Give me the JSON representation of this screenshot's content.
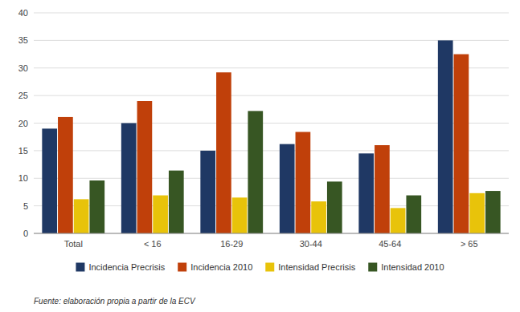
{
  "chart_data": {
    "type": "bar",
    "categories": [
      "Total",
      "< 16",
      "16-29",
      "30-44",
      "45-64",
      "> 65"
    ],
    "series": [
      {
        "name": "Incidencia Precrisis",
        "color": "#1f3864",
        "values": [
          19.0,
          20.0,
          15.0,
          16.2,
          14.5,
          35.0
        ]
      },
      {
        "name": "Incidencia 2010",
        "color": "#c0400a",
        "values": [
          21.1,
          24.0,
          29.2,
          18.4,
          16.0,
          32.5
        ]
      },
      {
        "name": "Intensidad Precrisis",
        "color": "#e8c30a",
        "values": [
          6.2,
          6.9,
          6.5,
          5.8,
          4.6,
          7.3
        ]
      },
      {
        "name": "Intensidad 2010",
        "color": "#375623",
        "values": [
          9.6,
          11.4,
          22.2,
          9.4,
          6.9,
          7.7
        ]
      }
    ],
    "ylim": [
      0,
      40
    ],
    "yticks": [
      0,
      5,
      10,
      15,
      20,
      25,
      30,
      35,
      40
    ],
    "grid": true,
    "legend": "bottom",
    "annotations": [
      "Fuente: elaboración propia a partir de la ECV"
    ]
  }
}
